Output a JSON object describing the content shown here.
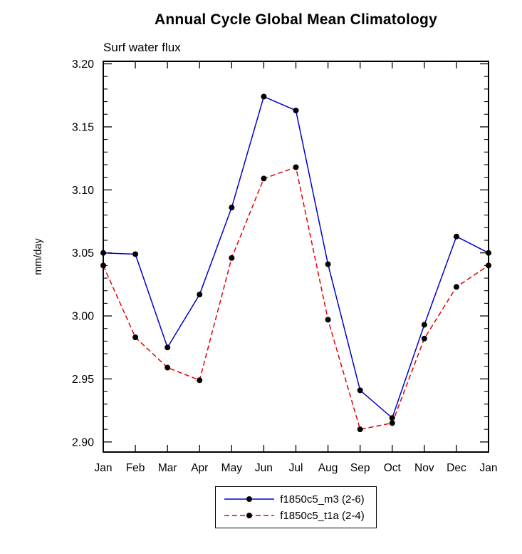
{
  "chart_data": {
    "type": "line",
    "title": "Annual Cycle Global Mean Climatology",
    "subtitle": "Surf water flux",
    "ylabel": "mm/day",
    "xlabel": "",
    "x_categories": [
      "Jan",
      "Feb",
      "Mar",
      "Apr",
      "May",
      "Jun",
      "Jul",
      "Aug",
      "Sep",
      "Oct",
      "Nov",
      "Dec",
      "Jan"
    ],
    "ylim": [
      2.9,
      3.2
    ],
    "ytick_interval": 0.05,
    "yminor_interval": 0.01,
    "yticks": [
      "2.90",
      "2.95",
      "3.00",
      "3.05",
      "3.10",
      "3.15",
      "3.20"
    ],
    "grid": false,
    "legend_position": "bottom-center",
    "axis_color": "#000000",
    "marker_shape": "filled-circle",
    "series": [
      {
        "name": "f1850c5_m3 (2-6)",
        "color": "#0000cd",
        "dash": "solid",
        "marker_color": "#000000",
        "values": [
          3.05,
          3.049,
          2.975,
          3.017,
          3.086,
          3.174,
          3.163,
          3.041,
          2.941,
          2.919,
          2.993,
          3.063,
          3.05
        ]
      },
      {
        "name": "f1850c5_t1a (2-4)",
        "color": "#e60000",
        "dash": "dashed",
        "marker_color": "#000000",
        "values": [
          3.04,
          2.983,
          2.959,
          2.949,
          3.046,
          3.109,
          3.118,
          2.997,
          2.91,
          2.915,
          2.982,
          3.023,
          3.04
        ]
      }
    ]
  }
}
